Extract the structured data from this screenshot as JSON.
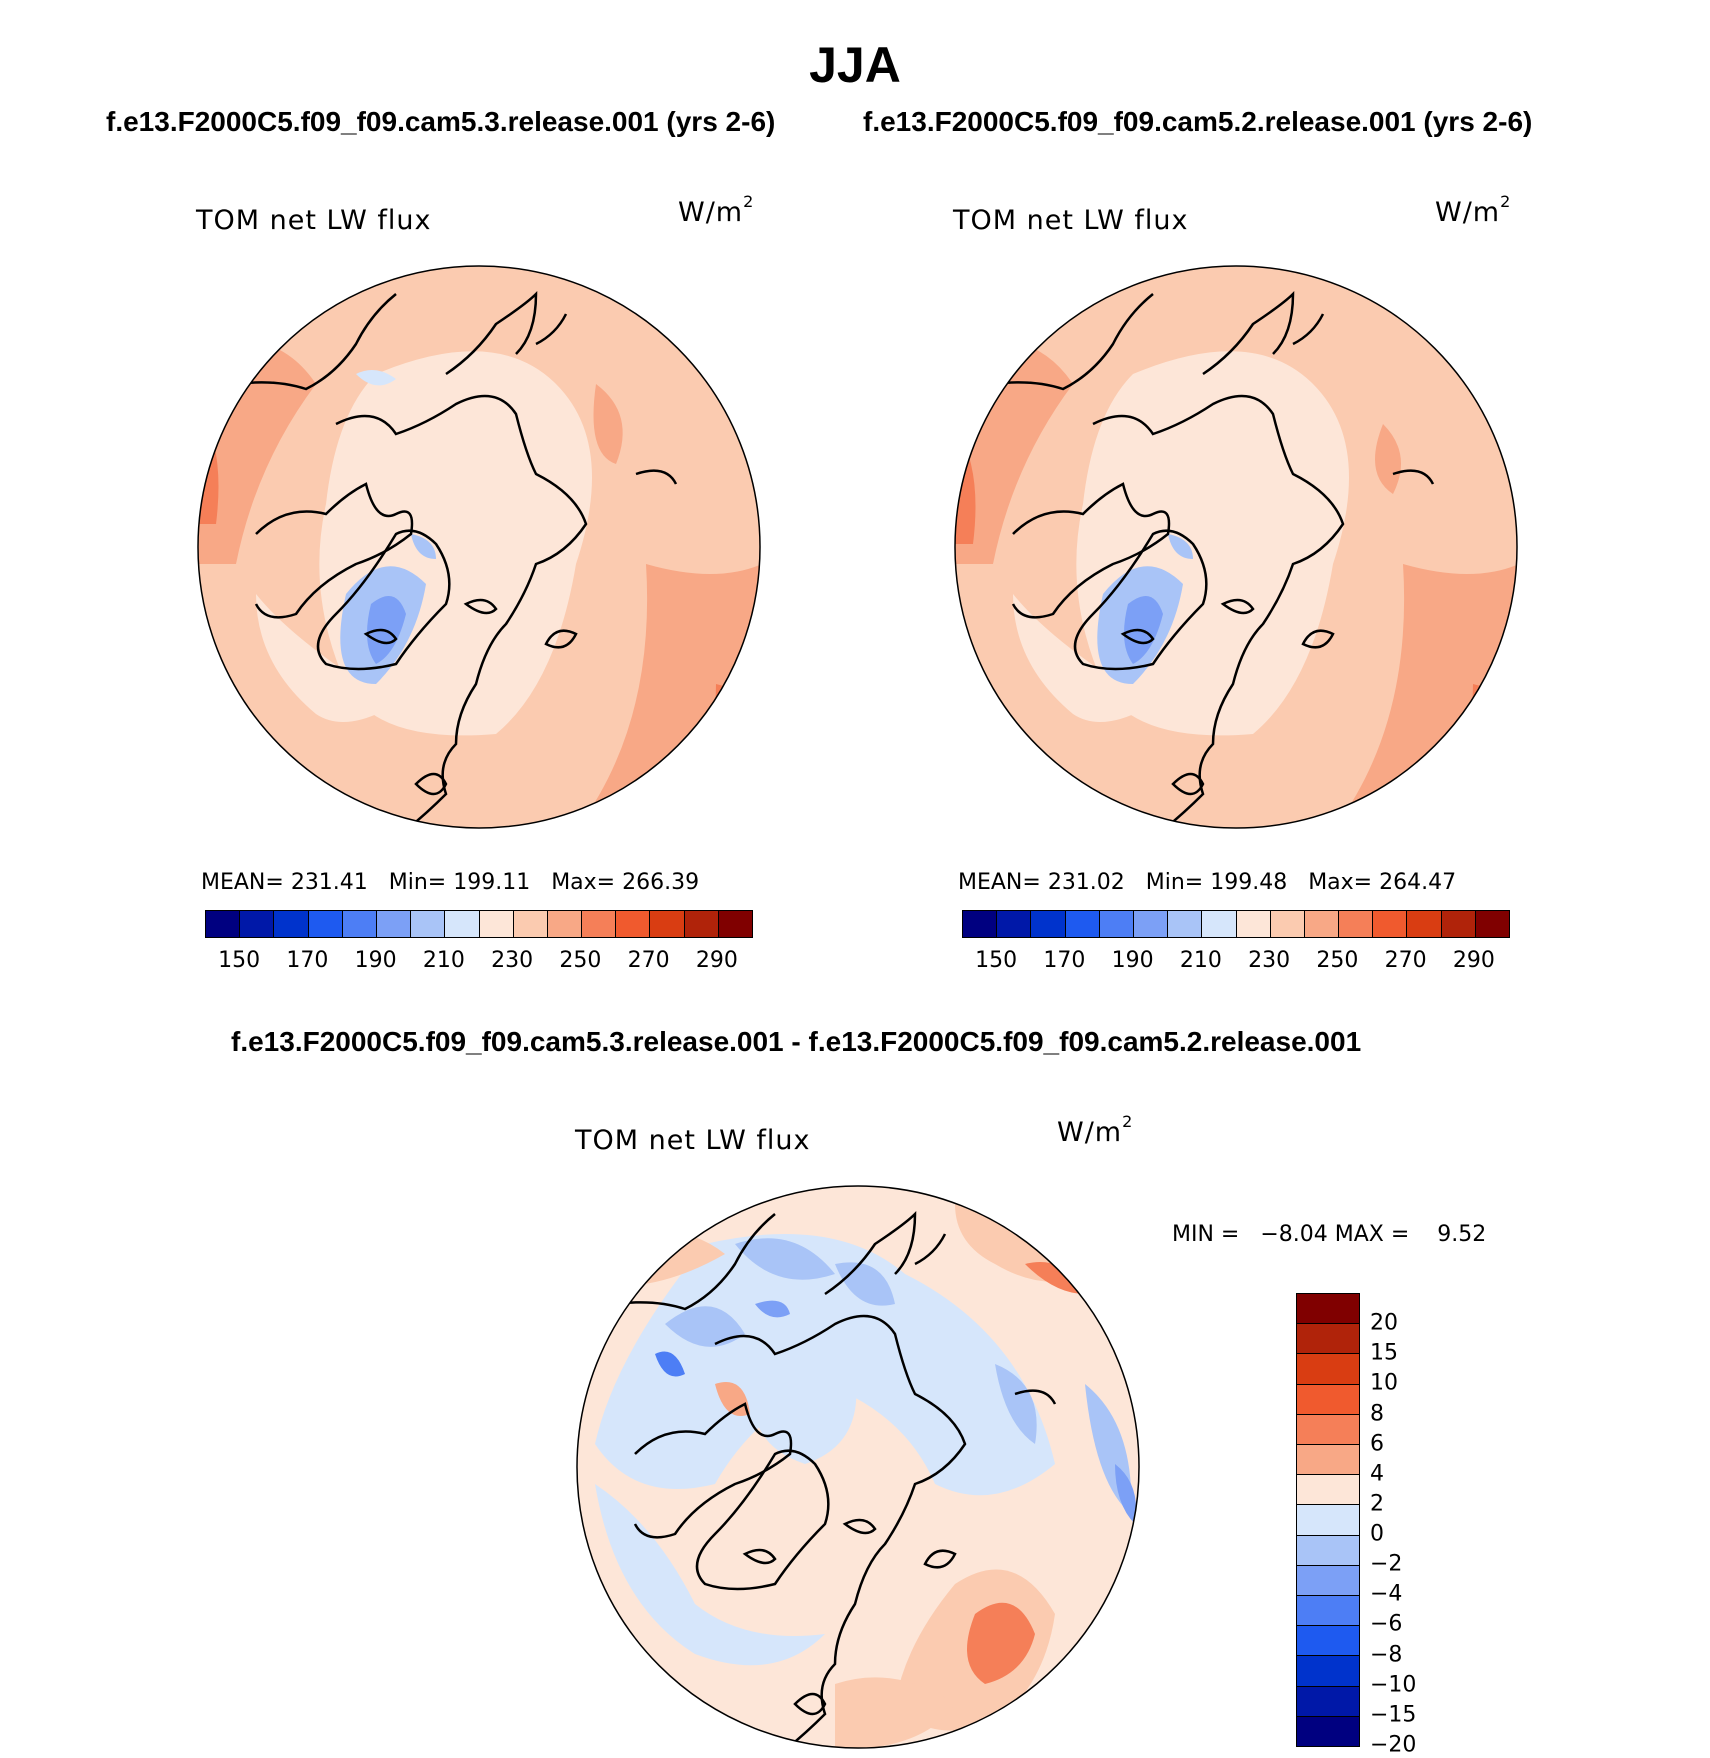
{
  "season": "JJA",
  "case1": "f.e13.F2000C5.f09_f09.cam5.3.release.001 (yrs 2-6)",
  "case2": "f.e13.F2000C5.f09_f09.cam5.2.release.001 (yrs 2-6)",
  "diff_title": "f.e13.F2000C5.f09_f09.cam5.3.release.001 - f.e13.F2000C5.f09_f09.cam5.2.release.001",
  "variable": "TOM net LW flux",
  "units": "W/m",
  "units_exp": "2",
  "panels": [
    {
      "stats": "MEAN= 231.41   Min= 199.11   Max= 266.39"
    },
    {
      "stats": "MEAN= 231.02   Min= 199.48   Max= 264.47"
    }
  ],
  "diff_stats": "MIN =   −8.04 MAX =    9.52",
  "abs_colorbar": {
    "colors": [
      "#000080",
      "#0018a8",
      "#0033cc",
      "#1e5af0",
      "#4d7ef5",
      "#7ca0f6",
      "#a9c4f7",
      "#d6e6fb",
      "#fde6d8",
      "#fbcbb0",
      "#f8a886",
      "#f57f58",
      "#f05a2e",
      "#d93d12",
      "#b0230a",
      "#800000"
    ],
    "ticks": [
      "150",
      "170",
      "190",
      "210",
      "230",
      "250",
      "270",
      "290"
    ]
  },
  "diff_colorbar": {
    "colors": [
      "#800000",
      "#b0230a",
      "#d93d12",
      "#f05a2e",
      "#f57f58",
      "#f8a886",
      "#fde6d8",
      "#d6e6fb",
      "#a9c4f7",
      "#7ca0f6",
      "#4d7ef5",
      "#1e5af0",
      "#0033cc",
      "#0018a8",
      "#000080"
    ],
    "ticks": [
      "20",
      "15",
      "10",
      "8",
      "6",
      "4",
      "2",
      "0",
      "−2",
      "−4",
      "−6",
      "−8",
      "−10",
      "−15",
      "−20"
    ]
  }
}
